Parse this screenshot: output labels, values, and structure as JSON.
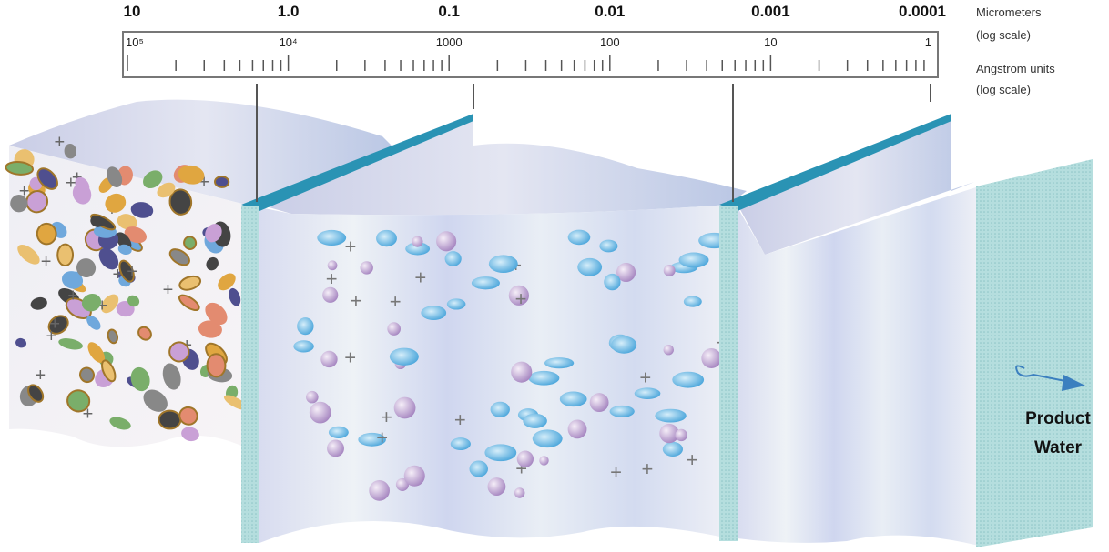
{
  "scale": {
    "micrometers": [
      "10",
      "1.0",
      "0.1",
      "0.01",
      "0.001",
      "0.0001"
    ],
    "micrometers_label": "Micrometers",
    "micrometers_note": "(log scale)",
    "angstroms": [
      "10⁵",
      "10⁴",
      "1000",
      "100",
      "10",
      "1"
    ],
    "angstroms_label": "Angstrom units",
    "angstroms_note": "(log scale)"
  },
  "product": {
    "line1": "Product",
    "line2": "Water"
  }
}
